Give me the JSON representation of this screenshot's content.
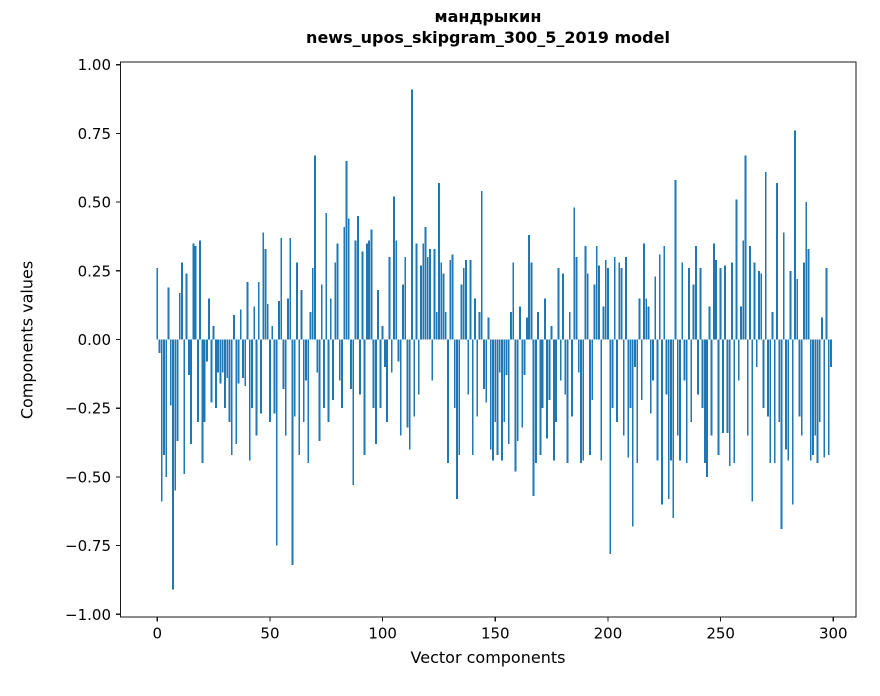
{
  "chart_data": {
    "type": "bar",
    "title": "мандрыкин",
    "subtitle": "news_upos_skipgram_300_5_2019 model",
    "xlabel": "Vector components",
    "ylabel": "Components values",
    "x_ticks": [
      0,
      50,
      100,
      150,
      200,
      250,
      300
    ],
    "y_ticks": [
      1.0,
      0.75,
      0.5,
      0.25,
      0.0,
      -0.25,
      -0.5,
      -0.75,
      -1.0
    ],
    "y_tick_labels": [
      "1.00",
      "0.75",
      "0.50",
      "0.25",
      "0.00",
      "−0.25",
      "−0.50",
      "−0.75",
      "−1.00"
    ],
    "x_tick_labels": [
      "0",
      "50",
      "100",
      "150",
      "200",
      "250",
      "300"
    ],
    "xlim": [
      -15,
      314
    ],
    "ylim": [
      -1.01,
      1.01
    ],
    "grid": false,
    "legend": "none",
    "bar_color": "#1f77b4",
    "n_components": 300,
    "values": [
      0.26,
      -0.05,
      -0.59,
      -0.42,
      -0.5,
      0.19,
      -0.24,
      -0.91,
      -0.55,
      -0.37,
      0.17,
      0.28,
      -0.49,
      0.24,
      -0.13,
      -0.38,
      0.35,
      0.34,
      -0.3,
      0.36,
      -0.45,
      -0.3,
      -0.08,
      0.15,
      -0.23,
      0.05,
      -0.25,
      -0.12,
      -0.16,
      -0.12,
      -0.25,
      -0.14,
      -0.3,
      -0.42,
      0.09,
      -0.38,
      -0.16,
      0.11,
      -0.14,
      -0.17,
      0.21,
      -0.44,
      -0.25,
      0.12,
      -0.35,
      0.21,
      -0.27,
      0.39,
      0.33,
      0.13,
      -0.3,
      0.05,
      -0.27,
      -0.75,
      0.14,
      0.37,
      -0.18,
      -0.35,
      0.15,
      0.37,
      -0.82,
      -0.28,
      0.28,
      -0.42,
      0.18,
      -0.3,
      -0.15,
      -0.45,
      0.1,
      0.26,
      0.67,
      -0.12,
      -0.37,
      0.2,
      -0.25,
      0.46,
      -0.3,
      0.15,
      -0.22,
      0.28,
      0.35,
      -0.15,
      -0.25,
      0.41,
      0.65,
      0.44,
      -0.18,
      -0.53,
      0.36,
      0.45,
      -0.2,
      0.32,
      -0.42,
      0.35,
      0.36,
      0.4,
      -0.25,
      -0.38,
      0.18,
      -0.25,
      0.05,
      -0.1,
      -0.3,
      0.3,
      -0.12,
      0.52,
      0.36,
      -0.08,
      -0.35,
      0.2,
      0.3,
      -0.32,
      -0.4,
      0.91,
      -0.28,
      0.35,
      -0.2,
      0.27,
      0.35,
      0.41,
      0.3,
      0.33,
      -0.15,
      0.33,
      0.1,
      0.57,
      0.28,
      0.24,
      0.1,
      -0.45,
      0.29,
      0.31,
      -0.25,
      -0.58,
      -0.42,
      0.2,
      0.26,
      0.29,
      -0.2,
      0.29,
      -0.42,
      0.15,
      -0.28,
      0.1,
      0.54,
      -0.18,
      -0.23,
      0.08,
      -0.4,
      -0.44,
      -0.3,
      -0.42,
      -0.12,
      -0.44,
      -0.3,
      -0.13,
      -0.38,
      0.1,
      0.28,
      -0.48,
      -0.37,
      0.12,
      -0.32,
      -0.13,
      0.08,
      0.38,
      0.28,
      -0.57,
      -0.45,
      0.1,
      -0.42,
      -0.25,
      0.15,
      -0.36,
      -0.22,
      0.05,
      -0.44,
      -0.3,
      0.26,
      -0.15,
      0.24,
      -0.2,
      -0.45,
      0.1,
      -0.28,
      0.48,
      0.3,
      -0.12,
      -0.45,
      -0.44,
      0.34,
      0.24,
      -0.42,
      -0.22,
      0.2,
      0.34,
      0.27,
      -0.44,
      0.12,
      0.29,
      0.26,
      -0.78,
      -0.25,
      0.3,
      -0.3,
      0.28,
      0.26,
      -0.35,
      0.3,
      -0.43,
      -0.25,
      -0.68,
      -0.1,
      -0.45,
      0.15,
      -0.22,
      0.35,
      0.15,
      0.12,
      -0.27,
      -0.15,
      0.23,
      -0.44,
      0.31,
      -0.6,
      0.34,
      -0.2,
      -0.58,
      -0.44,
      -0.65,
      0.58,
      -0.35,
      -0.44,
      0.28,
      -0.15,
      -0.45,
      0.26,
      -0.3,
      0.2,
      0.34,
      -0.2,
      0.26,
      -0.25,
      -0.45,
      -0.5,
      0.12,
      -0.35,
      0.35,
      0.29,
      -0.42,
      0.26,
      -0.34,
      0.27,
      -0.34,
      -0.46,
      0.28,
      -0.45,
      0.51,
      -0.15,
      0.12,
      0.36,
      0.67,
      -0.35,
      0.34,
      -0.59,
      0.28,
      -0.1,
      0.25,
      0.24,
      -0.25,
      0.61,
      -0.28,
      -0.45,
      0.1,
      -0.45,
      0.57,
      -0.3,
      -0.69,
      0.39,
      -0.4,
      -0.44,
      0.25,
      -0.6,
      0.76,
      0.22,
      -0.28,
      -0.35,
      0.28,
      0.5,
      0.33,
      -0.44,
      -0.42,
      -0.35,
      -0.45,
      -0.3,
      0.08,
      -0.43,
      0.26,
      -0.42,
      -0.1
    ]
  }
}
